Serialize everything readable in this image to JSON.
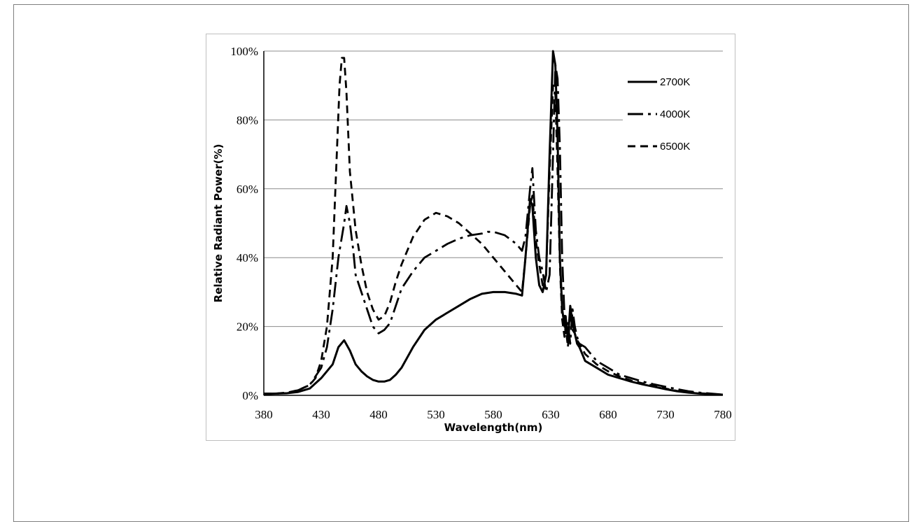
{
  "chart_data": {
    "type": "line",
    "title": "",
    "xlabel": "Wavelength(nm)",
    "ylabel": "Relative Radiant Power(%)",
    "xlim": [
      380,
      780
    ],
    "ylim": [
      0,
      100
    ],
    "x_ticks": [
      "380",
      "430",
      "480",
      "530",
      "580",
      "630",
      "680",
      "730",
      "780"
    ],
    "y_ticks": [
      "0%",
      "20%",
      "40%",
      "60%",
      "80%",
      "100%"
    ],
    "grid": "horizontal",
    "legend_position": "top-right",
    "series": [
      {
        "name": "2700K",
        "line_style": "solid",
        "color": "#000000",
        "x": [
          380,
          390,
          400,
          410,
          420,
          430,
          440,
          445,
          450,
          455,
          460,
          465,
          470,
          475,
          480,
          485,
          490,
          495,
          500,
          505,
          510,
          520,
          530,
          540,
          550,
          560,
          570,
          580,
          590,
          600,
          605,
          608,
          612,
          614,
          617,
          620,
          623,
          626,
          629,
          632,
          634,
          636,
          638,
          640,
          642,
          643,
          645,
          647,
          649,
          651,
          653,
          655,
          660,
          670,
          680,
          690,
          700,
          710,
          720,
          730,
          740,
          750,
          760,
          770,
          780
        ],
        "y": [
          0.3,
          0.5,
          0.6,
          1,
          2,
          5,
          9,
          14,
          16,
          13,
          9,
          7,
          5.5,
          4.5,
          4,
          4,
          4.5,
          6,
          8,
          11,
          14,
          19,
          22,
          24,
          26,
          28,
          29.5,
          30,
          30,
          29.5,
          29,
          40,
          57,
          55,
          40,
          32,
          30,
          35,
          70,
          100,
          96,
          75,
          40,
          25,
          20,
          23,
          16,
          26,
          21,
          18,
          15,
          14,
          10,
          8,
          6,
          5,
          4,
          3.2,
          2.5,
          1.8,
          1.2,
          0.8,
          0.5,
          0.3,
          0.2
        ]
      },
      {
        "name": "4000K",
        "line_style": "dash-dot",
        "color": "#000000",
        "x": [
          380,
          390,
          400,
          410,
          420,
          430,
          435,
          440,
          445,
          450,
          452,
          455,
          458,
          460,
          465,
          470,
          475,
          480,
          485,
          490,
          495,
          500,
          510,
          520,
          530,
          540,
          550,
          560,
          570,
          575,
          580,
          590,
          600,
          605,
          608,
          612,
          614,
          617,
          620,
          623,
          626,
          629,
          632,
          634,
          636,
          638,
          640,
          642,
          643,
          645,
          647,
          649,
          651,
          653,
          655,
          660,
          670,
          680,
          690,
          700,
          710,
          720,
          730,
          740,
          750,
          760,
          770,
          780
        ],
        "y": [
          0.5,
          0.5,
          0.6,
          1.5,
          3,
          8,
          14,
          25,
          40,
          50,
          55,
          50,
          42,
          35,
          30,
          25,
          20,
          18,
          19,
          21,
          26,
          31,
          36,
          40,
          42,
          44,
          45.5,
          46.5,
          47,
          47.5,
          47.5,
          46.5,
          44,
          42,
          46,
          60,
          66,
          48,
          40,
          36,
          30,
          35,
          70,
          96,
          92,
          72,
          40,
          23,
          18,
          21,
          15,
          25,
          20,
          17,
          15,
          14,
          10,
          8,
          6,
          5,
          4,
          3.2,
          2.5,
          1.8,
          1.2,
          0.8,
          0.5,
          0.2
        ]
      },
      {
        "name": "6500K",
        "line_style": "dashed",
        "color": "#000000",
        "x": [
          380,
          390,
          400,
          410,
          420,
          425,
          430,
          435,
          440,
          443,
          446,
          448,
          450,
          452,
          455,
          460,
          465,
          470,
          475,
          480,
          485,
          490,
          495,
          500,
          510,
          520,
          530,
          540,
          550,
          560,
          570,
          580,
          590,
          600,
          605,
          608,
          612,
          614,
          617,
          620,
          623,
          626,
          629,
          632,
          634,
          636,
          638,
          640,
          642,
          643,
          645,
          647,
          649,
          651,
          653,
          655,
          660,
          670,
          680,
          690,
          700,
          710,
          720,
          730,
          740,
          750,
          760,
          770,
          780
        ],
        "y": [
          0.5,
          0.5,
          0.8,
          1.5,
          3,
          5,
          10,
          20,
          40,
          65,
          90,
          98,
          98,
          88,
          65,
          48,
          38,
          30,
          25,
          22,
          23,
          27,
          33,
          38,
          46,
          51,
          53,
          52,
          50,
          47,
          44,
          40,
          36,
          32,
          30,
          40,
          55,
          58,
          45,
          38,
          32,
          35,
          65,
          90,
          88,
          65,
          38,
          22,
          17,
          20,
          14,
          24,
          19,
          18,
          16,
          15,
          12,
          9,
          7,
          5.5,
          4.3,
          3.5,
          2.8,
          2,
          1.3,
          0.9,
          0.6,
          0.4,
          0.2
        ]
      }
    ]
  }
}
